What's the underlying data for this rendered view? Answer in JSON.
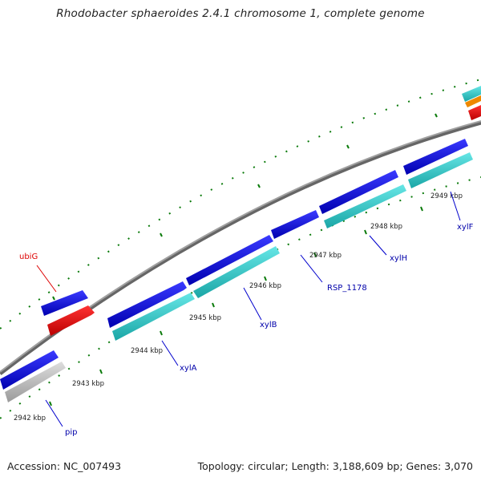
{
  "title": "Rhodobacter sphaeroides 2.4.1 chromosome 1, complete genome",
  "footer": {
    "accession": "Accession: NC_007493",
    "summary": "Topology: circular; Length: 3,188,609 bp; Genes: 3,070"
  },
  "scale_labels": [
    "2942 kbp",
    "2943 kbp",
    "2944 kbp",
    "2945 kbp",
    "2946 kbp",
    "2947 kbp",
    "2948 kbp",
    "2949 kbp"
  ],
  "gene_labels": [
    "ubiG",
    "pip",
    "xylA",
    "xylB",
    "RSP_1178",
    "xylH",
    "xylF"
  ],
  "colors": {
    "backbone": "#808080",
    "cds": "#0000ee",
    "gene": "#33cccc",
    "rna_red": "#ee0000",
    "rna_grey": "#c0c0c0",
    "orange": "#ee8800",
    "tick": "#006600",
    "label_red": "#dd0000",
    "label_blue": "#0000aa"
  }
}
